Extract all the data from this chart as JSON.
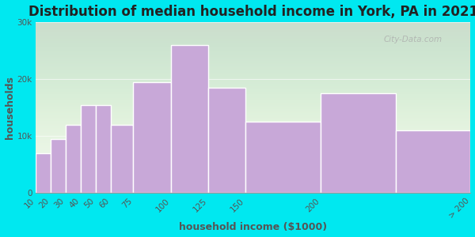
{
  "title": "Distribution of median household income in York, PA in 2021",
  "xlabel": "household income ($1000)",
  "ylabel": "households",
  "categories": [
    "10",
    "20",
    "30",
    "40",
    "50",
    "60",
    "75",
    "100",
    "125",
    "150",
    "200",
    "> 200"
  ],
  "values": [
    7000,
    9500,
    12000,
    15500,
    15500,
    12000,
    19500,
    26000,
    18500,
    12500,
    17500,
    11000
  ],
  "bar_color": "#c8a8d8",
  "bar_edge_color": "#ffffff",
  "background_outer": "#00e8f0",
  "ylim": [
    0,
    30000
  ],
  "yticks": [
    0,
    10000,
    20000,
    30000
  ],
  "ytick_labels": [
    "0",
    "10k",
    "20k",
    "30k"
  ],
  "title_fontsize": 12,
  "axis_label_fontsize": 9,
  "watermark": "City-Data.com",
  "left_edges": [
    10,
    20,
    30,
    40,
    50,
    60,
    75,
    100,
    125,
    150,
    200,
    250
  ],
  "widths": [
    10,
    10,
    10,
    10,
    10,
    15,
    25,
    25,
    25,
    50,
    50,
    50
  ]
}
